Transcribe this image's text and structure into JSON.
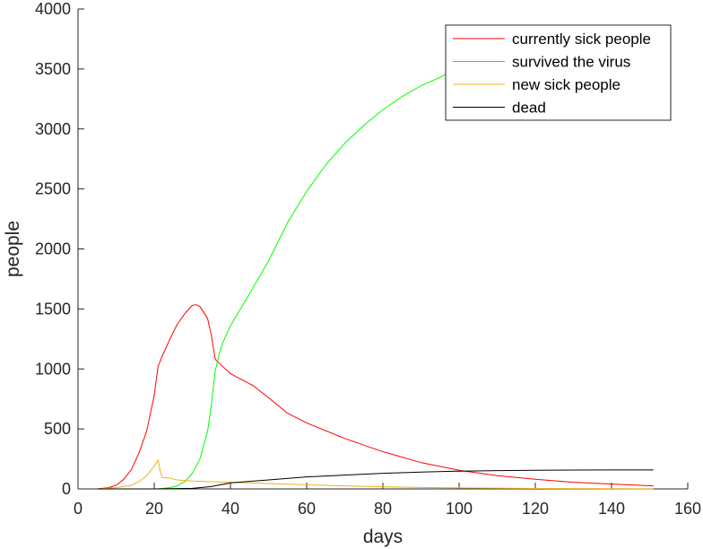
{
  "chart_data": {
    "type": "line",
    "title": "",
    "xlabel": "days",
    "ylabel": "people",
    "xlim": [
      0,
      160
    ],
    "ylim": [
      0,
      4000
    ],
    "xticks": [
      0,
      20,
      40,
      60,
      80,
      100,
      120,
      140,
      160
    ],
    "yticks": [
      0,
      500,
      1000,
      1500,
      2000,
      2500,
      3000,
      3500,
      4000
    ],
    "grid": false,
    "legend_position": "top-right",
    "series": [
      {
        "name": "currently sick people",
        "color": "#ff0000",
        "points": [
          [
            5,
            0
          ],
          [
            8,
            10
          ],
          [
            10,
            30
          ],
          [
            12,
            80
          ],
          [
            14,
            160
          ],
          [
            16,
            300
          ],
          [
            18,
            480
          ],
          [
            20,
            780
          ],
          [
            21,
            1020
          ],
          [
            22,
            1100
          ],
          [
            24,
            1240
          ],
          [
            26,
            1370
          ],
          [
            28,
            1460
          ],
          [
            30,
            1530
          ],
          [
            31,
            1535
          ],
          [
            32,
            1520
          ],
          [
            34,
            1420
          ],
          [
            35,
            1280
          ],
          [
            36,
            1080
          ],
          [
            38,
            1020
          ],
          [
            40,
            960
          ],
          [
            43,
            910
          ],
          [
            46,
            860
          ],
          [
            50,
            760
          ],
          [
            55,
            630
          ],
          [
            60,
            550
          ],
          [
            70,
            420
          ],
          [
            80,
            310
          ],
          [
            90,
            220
          ],
          [
            100,
            155
          ],
          [
            110,
            110
          ],
          [
            120,
            80
          ],
          [
            130,
            55
          ],
          [
            140,
            40
          ],
          [
            151,
            25
          ]
        ]
      },
      {
        "name": "survived the virus",
        "color": "#00ff00",
        "points": [
          [
            21,
            0
          ],
          [
            24,
            10
          ],
          [
            26,
            25
          ],
          [
            28,
            60
          ],
          [
            30,
            130
          ],
          [
            32,
            250
          ],
          [
            34,
            480
          ],
          [
            35,
            700
          ],
          [
            36,
            980
          ],
          [
            37,
            1120
          ],
          [
            38,
            1220
          ],
          [
            40,
            1360
          ],
          [
            43,
            1520
          ],
          [
            46,
            1680
          ],
          [
            50,
            1900
          ],
          [
            55,
            2220
          ],
          [
            60,
            2480
          ],
          [
            65,
            2700
          ],
          [
            70,
            2880
          ],
          [
            75,
            3030
          ],
          [
            80,
            3160
          ],
          [
            85,
            3270
          ],
          [
            90,
            3360
          ],
          [
            95,
            3430
          ],
          [
            98,
            3480
          ]
        ]
      },
      {
        "name": "new sick people",
        "color": "#edb120",
        "points": [
          [
            5,
            0
          ],
          [
            10,
            10
          ],
          [
            14,
            30
          ],
          [
            16,
            60
          ],
          [
            18,
            110
          ],
          [
            20,
            190
          ],
          [
            21,
            240
          ],
          [
            21.5,
            160
          ],
          [
            22,
            95
          ],
          [
            24,
            90
          ],
          [
            26,
            75
          ],
          [
            30,
            65
          ],
          [
            40,
            55
          ],
          [
            50,
            45
          ],
          [
            60,
            35
          ],
          [
            70,
            25
          ],
          [
            80,
            18
          ],
          [
            90,
            12
          ],
          [
            100,
            8
          ],
          [
            120,
            4
          ],
          [
            140,
            2
          ],
          [
            151,
            1
          ]
        ]
      },
      {
        "name": "dead",
        "color": "#000000",
        "points": [
          [
            5,
            0
          ],
          [
            20,
            0
          ],
          [
            30,
            5
          ],
          [
            35,
            20
          ],
          [
            40,
            50
          ],
          [
            50,
            75
          ],
          [
            60,
            100
          ],
          [
            70,
            115
          ],
          [
            80,
            130
          ],
          [
            90,
            140
          ],
          [
            100,
            148
          ],
          [
            110,
            152
          ],
          [
            120,
            155
          ],
          [
            130,
            157
          ],
          [
            140,
            158
          ],
          [
            151,
            158
          ]
        ]
      }
    ]
  }
}
